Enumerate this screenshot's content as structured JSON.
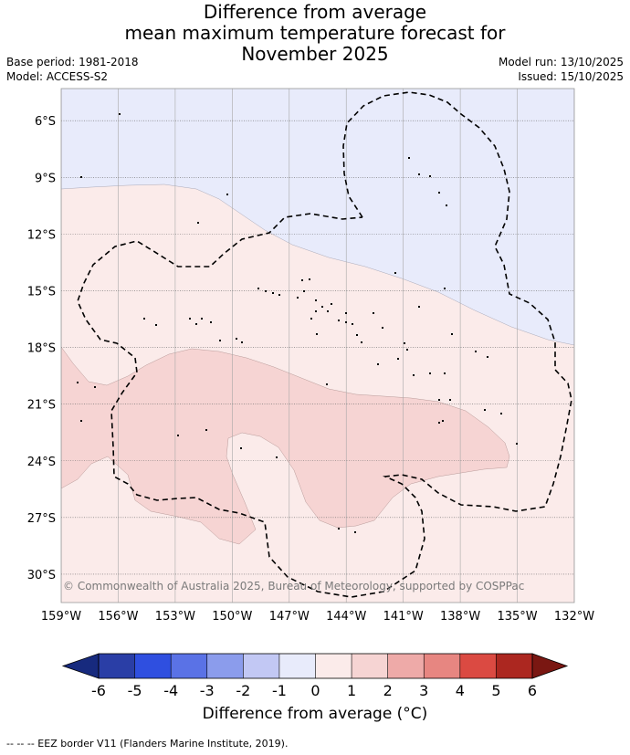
{
  "title": {
    "line1": "Difference from average",
    "line2": "mean maximum temperature forecast for",
    "line3": "November 2025"
  },
  "meta": {
    "base_period": "Base period: 1981-2018",
    "model": "Model: ACCESS-S2",
    "model_run": "Model run: 13/10/2025",
    "issued": "Issued: 15/10/2025"
  },
  "map": {
    "lon_range": [
      -159,
      -132
    ],
    "lat_range": [
      -31.5,
      -4.3
    ],
    "lon_ticks": [
      {
        "value": -159,
        "label": "159°W"
      },
      {
        "value": -156,
        "label": "156°W"
      },
      {
        "value": -153,
        "label": "153°W"
      },
      {
        "value": -150,
        "label": "150°W"
      },
      {
        "value": -147,
        "label": "147°W"
      },
      {
        "value": -144,
        "label": "144°W"
      },
      {
        "value": -141,
        "label": "141°W"
      },
      {
        "value": -138,
        "label": "138°W"
      },
      {
        "value": -135,
        "label": "135°W"
      },
      {
        "value": -132,
        "label": "132°W"
      }
    ],
    "lat_ticks": [
      {
        "value": -6,
        "label": "6°S"
      },
      {
        "value": -9,
        "label": "9°S"
      },
      {
        "value": -12,
        "label": "12°S"
      },
      {
        "value": -15,
        "label": "15°S"
      },
      {
        "value": -18,
        "label": "18°S"
      },
      {
        "value": -21,
        "label": "21°S"
      },
      {
        "value": -24,
        "label": "24°S"
      },
      {
        "value": -27,
        "label": "27°S"
      },
      {
        "value": -30,
        "label": "30°S"
      }
    ],
    "copyright": "© Commonwealth of Australia 2025, Bureau of Meteorology, supported by COSPPac"
  },
  "colorbar": {
    "ticks": [
      "-6",
      "-5",
      "-4",
      "-3",
      "-2",
      "-1",
      "0",
      "1",
      "2",
      "3",
      "4",
      "5",
      "6"
    ],
    "colors": [
      "#2a3ea6",
      "#2f4fe0",
      "#5a72e6",
      "#8b9cec",
      "#c2c8f4",
      "#e8ebfb",
      "#fbebea",
      "#f6d4d3",
      "#eeaaa8",
      "#e78681",
      "#db4a42",
      "#ac2720"
    ],
    "under_color": "#172a7e",
    "over_color": "#7a1712",
    "label": "Difference from average (°C)"
  },
  "legend_note": "-- -- -- EEZ border V11 (Flanders Marine Institute, 2019)."
}
